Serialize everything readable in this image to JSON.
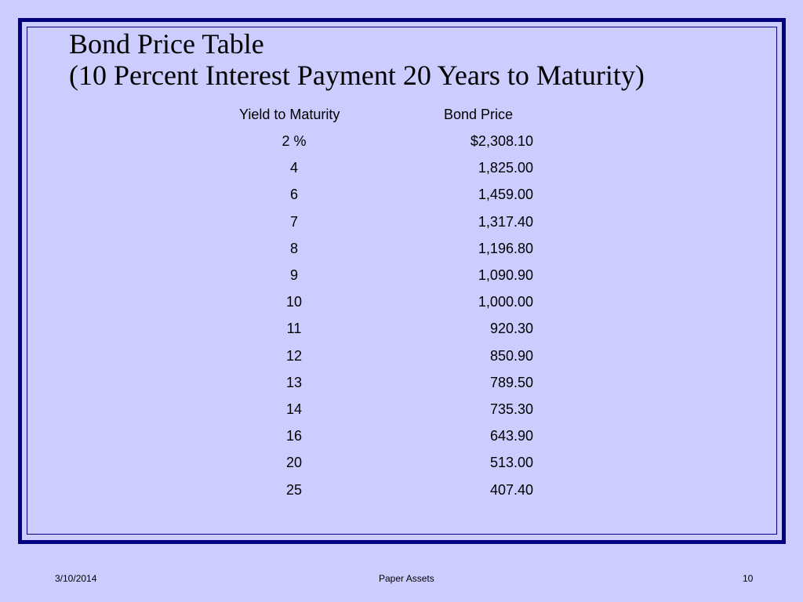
{
  "slide": {
    "title_line1": "Bond Price Table",
    "title_line2": "(10 Percent Interest Payment 20 Years to Maturity)"
  },
  "table": {
    "columns": [
      "Yield to Maturity",
      "Bond Price"
    ],
    "rows": [
      {
        "yield": "2 %",
        "price": "$2,308.10"
      },
      {
        "yield": "4",
        "price": "1,825.00"
      },
      {
        "yield": "6",
        "price": "1,459.00"
      },
      {
        "yield": "7",
        "price": "1,317.40"
      },
      {
        "yield": "8",
        "price": "1,196.80"
      },
      {
        "yield": "9",
        "price": "1,090.90"
      },
      {
        "yield": "10",
        "price": "1,000.00"
      },
      {
        "yield": "11",
        "price": "920.30"
      },
      {
        "yield": "12",
        "price": "850.90"
      },
      {
        "yield": "13",
        "price": "789.50"
      },
      {
        "yield": "14",
        "price": "735.30"
      },
      {
        "yield": "16",
        "price": "643.90"
      },
      {
        "yield": "20",
        "price": "513.00"
      },
      {
        "yield": "25",
        "price": "407.40"
      }
    ]
  },
  "footer": {
    "date": "3/10/2014",
    "title": "Paper Assets",
    "page": "10"
  },
  "colors": {
    "background": "#ccccff",
    "border": "#000080",
    "text": "#000000"
  }
}
